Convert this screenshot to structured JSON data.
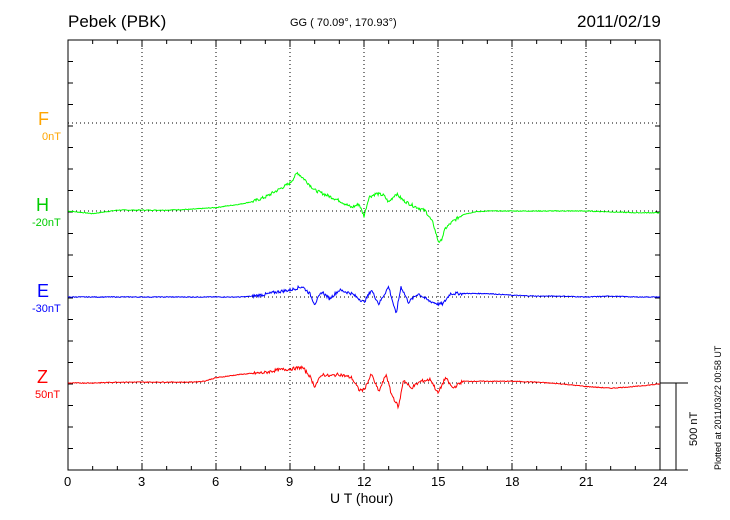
{
  "header": {
    "station": "Pebek (PBK)",
    "coords": "GG ( 70.09°, 170.93°)",
    "date": "2011/02/19"
  },
  "footer": {
    "plotted": "Plotted at 2011/03/22 00:58 UT"
  },
  "channels": [
    {
      "name": "F",
      "offset": "0nT",
      "color": "#FFA500"
    },
    {
      "name": "H",
      "offset": "-20nT",
      "color": "#00CC00"
    },
    {
      "name": "E",
      "offset": "-30nT",
      "color": "#0000FF"
    },
    {
      "name": "Z",
      "offset": "50nT",
      "color": "#FF0000"
    }
  ],
  "chart_data": {
    "type": "line",
    "xlabel": "U T (hour)",
    "xlim": [
      0,
      24
    ],
    "xticks": [
      "0",
      "3",
      "6",
      "9",
      "12",
      "15",
      "18",
      "21",
      "24"
    ],
    "scale_bar": "500 nT",
    "grid": "dotted",
    "series": [
      {
        "name": "F",
        "color": "#FFA500",
        "x": [],
        "y": []
      },
      {
        "name": "H",
        "color": "#00FF00",
        "x": [
          0,
          1,
          2,
          3,
          4,
          5,
          6,
          7,
          7.5,
          8,
          8.5,
          9,
          9.3,
          9.6,
          10,
          10.5,
          11,
          11.5,
          11.8,
          12.0,
          12.2,
          12.5,
          12.8,
          13.0,
          13.3,
          13.6,
          14.0,
          14.5,
          14.8,
          15.0,
          15.1,
          15.3,
          15.6,
          16,
          16.5,
          17,
          18,
          19,
          20,
          21,
          22,
          23,
          24
        ],
        "y": [
          0,
          -15,
          5,
          5,
          5,
          10,
          20,
          40,
          55,
          80,
          120,
          160,
          220,
          180,
          120,
          90,
          60,
          20,
          40,
          -30,
          80,
          100,
          90,
          50,
          100,
          60,
          30,
          0,
          -70,
          -170,
          -180,
          -100,
          -60,
          -20,
          -5,
          0,
          0,
          0,
          0,
          0,
          -5,
          -10,
          -10
        ]
      },
      {
        "name": "E",
        "color": "#0000FF",
        "x": [
          0,
          1,
          2,
          3,
          4,
          5,
          6,
          7,
          7.5,
          8,
          8.5,
          9,
          9.5,
          9.8,
          10,
          10.3,
          10.6,
          11,
          11.5,
          12,
          12.3,
          12.6,
          13.0,
          13.3,
          13.5,
          13.8,
          14.2,
          14.6,
          15.0,
          15.2,
          15.5,
          16,
          17,
          18,
          19,
          20,
          21,
          22,
          23,
          24
        ],
        "y": [
          0,
          0,
          0,
          0,
          0,
          0,
          0,
          0,
          5,
          15,
          30,
          40,
          60,
          20,
          -40,
          30,
          -10,
          40,
          20,
          -30,
          40,
          -40,
          60,
          -100,
          60,
          -30,
          20,
          -20,
          -40,
          -40,
          20,
          20,
          20,
          10,
          5,
          5,
          0,
          5,
          0,
          0
        ]
      },
      {
        "name": "Z",
        "color": "#FF0000",
        "x": [
          0,
          1,
          2,
          3,
          4,
          5,
          5.5,
          6,
          7,
          8,
          8.5,
          9,
          9.5,
          9.8,
          10,
          10.3,
          10.6,
          11,
          11.5,
          11.8,
          12.0,
          12.3,
          12.6,
          12.9,
          13.1,
          13.4,
          13.6,
          13.9,
          14.3,
          14.7,
          15.0,
          15.3,
          15.6,
          16,
          17,
          18,
          19,
          20,
          21,
          22,
          23,
          24
        ],
        "y": [
          0,
          0,
          5,
          5,
          5,
          5,
          10,
          30,
          50,
          60,
          75,
          80,
          90,
          40,
          -20,
          50,
          40,
          50,
          30,
          -40,
          -40,
          50,
          -50,
          50,
          -60,
          -140,
          20,
          -30,
          10,
          20,
          -60,
          30,
          -30,
          10,
          10,
          10,
          5,
          -5,
          -20,
          -30,
          -20,
          -5
        ]
      }
    ]
  }
}
